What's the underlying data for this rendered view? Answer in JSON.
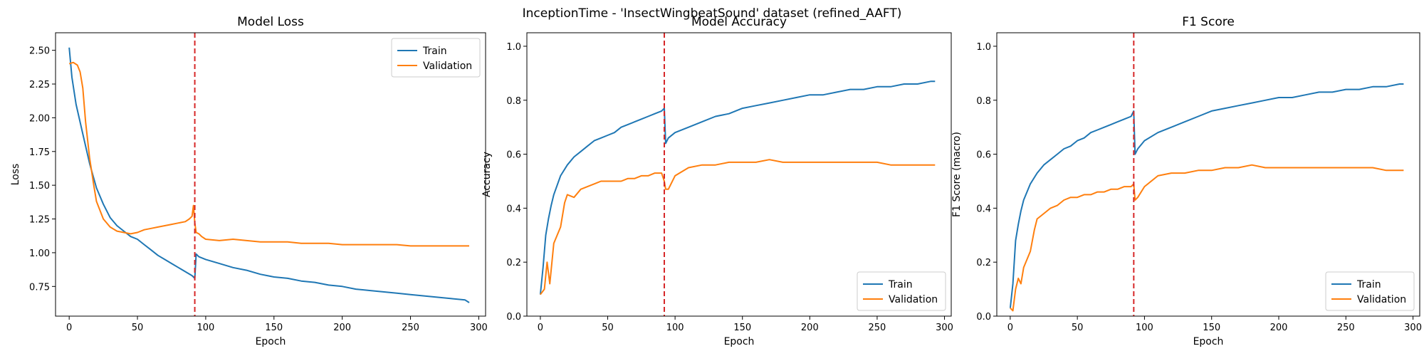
{
  "figure": {
    "suptitle": "InceptionTime - 'InsectWingbeatSound' dataset (refined_AAFT)"
  },
  "colors": {
    "train": "#1f77b4",
    "validation": "#ff7f0e",
    "marker": "#d62728",
    "axis": "#000000"
  },
  "chart_data": [
    {
      "type": "line",
      "title": "Model Loss",
      "xlabel": "Epoch",
      "ylabel": "Loss",
      "xlim": [
        -10,
        305
      ],
      "ylim": [
        0.53,
        2.63
      ],
      "xticks": [
        0,
        50,
        100,
        150,
        200,
        250,
        300
      ],
      "xtick_labels": [
        "0",
        "50",
        "100",
        "150",
        "200",
        "250",
        "300"
      ],
      "yticks": [
        0.75,
        1.0,
        1.25,
        1.5,
        1.75,
        2.0,
        2.25,
        2.5
      ],
      "ytick_labels": [
        "0.75",
        "1.00",
        "1.25",
        "1.50",
        "1.75",
        "2.00",
        "2.25",
        "2.50"
      ],
      "vline_x": 92,
      "legend_loc": "upper right",
      "series": [
        {
          "name": "Train",
          "color": "#1f77b4",
          "x": [
            0,
            2,
            5,
            10,
            15,
            20,
            25,
            30,
            35,
            40,
            45,
            50,
            55,
            60,
            65,
            70,
            75,
            80,
            85,
            90,
            92,
            93,
            95,
            100,
            110,
            120,
            130,
            140,
            150,
            160,
            170,
            180,
            190,
            200,
            210,
            220,
            230,
            240,
            250,
            260,
            270,
            280,
            290,
            293
          ],
          "y": [
            2.52,
            2.3,
            2.1,
            1.88,
            1.66,
            1.48,
            1.36,
            1.26,
            1.2,
            1.16,
            1.12,
            1.1,
            1.06,
            1.02,
            0.98,
            0.95,
            0.92,
            0.89,
            0.86,
            0.83,
            0.81,
            0.99,
            0.97,
            0.95,
            0.92,
            0.89,
            0.87,
            0.84,
            0.82,
            0.81,
            0.79,
            0.78,
            0.76,
            0.75,
            0.73,
            0.72,
            0.71,
            0.7,
            0.69,
            0.68,
            0.67,
            0.66,
            0.65,
            0.63
          ]
        },
        {
          "name": "Validation",
          "color": "#ff7f0e",
          "x": [
            0,
            3,
            6,
            8,
            10,
            12,
            15,
            18,
            20,
            25,
            30,
            35,
            40,
            45,
            50,
            55,
            60,
            65,
            70,
            75,
            80,
            85,
            88,
            90,
            91,
            92,
            93,
            95,
            97,
            100,
            110,
            120,
            130,
            140,
            150,
            160,
            170,
            180,
            190,
            200,
            210,
            220,
            230,
            240,
            250,
            260,
            270,
            280,
            290,
            293
          ],
          "y": [
            2.4,
            2.41,
            2.39,
            2.34,
            2.22,
            1.97,
            1.7,
            1.5,
            1.38,
            1.25,
            1.19,
            1.16,
            1.15,
            1.14,
            1.15,
            1.17,
            1.18,
            1.19,
            1.2,
            1.21,
            1.22,
            1.23,
            1.25,
            1.27,
            1.35,
            1.22,
            1.15,
            1.14,
            1.12,
            1.1,
            1.09,
            1.1,
            1.09,
            1.08,
            1.08,
            1.08,
            1.07,
            1.07,
            1.07,
            1.06,
            1.06,
            1.06,
            1.06,
            1.06,
            1.05,
            1.05,
            1.05,
            1.05,
            1.05,
            1.05
          ]
        }
      ]
    },
    {
      "type": "line",
      "title": "Model Accuracy",
      "xlabel": "Epoch",
      "ylabel": "Accuracy",
      "xlim": [
        -10,
        305
      ],
      "ylim": [
        0.0,
        1.05
      ],
      "xticks": [
        0,
        50,
        100,
        150,
        200,
        250,
        300
      ],
      "xtick_labels": [
        "0",
        "50",
        "100",
        "150",
        "200",
        "250",
        "300"
      ],
      "yticks": [
        0.0,
        0.2,
        0.4,
        0.6,
        0.8,
        1.0
      ],
      "ytick_labels": [
        "0.0",
        "0.2",
        "0.4",
        "0.6",
        "0.8",
        "1.0"
      ],
      "vline_x": 92,
      "legend_loc": "lower right",
      "series": [
        {
          "name": "Train",
          "color": "#1f77b4",
          "x": [
            0,
            2,
            4,
            6,
            8,
            10,
            15,
            20,
            25,
            30,
            35,
            40,
            45,
            50,
            55,
            60,
            65,
            70,
            75,
            80,
            85,
            90,
            92,
            93,
            95,
            100,
            110,
            120,
            130,
            140,
            150,
            160,
            170,
            180,
            190,
            200,
            210,
            220,
            230,
            240,
            250,
            260,
            270,
            280,
            290,
            293
          ],
          "y": [
            0.08,
            0.18,
            0.3,
            0.36,
            0.41,
            0.45,
            0.52,
            0.56,
            0.59,
            0.61,
            0.63,
            0.65,
            0.66,
            0.67,
            0.68,
            0.7,
            0.71,
            0.72,
            0.73,
            0.74,
            0.75,
            0.76,
            0.77,
            0.64,
            0.66,
            0.68,
            0.7,
            0.72,
            0.74,
            0.75,
            0.77,
            0.78,
            0.79,
            0.8,
            0.81,
            0.82,
            0.82,
            0.83,
            0.84,
            0.84,
            0.85,
            0.85,
            0.86,
            0.86,
            0.87,
            0.87
          ]
        },
        {
          "name": "Validation",
          "color": "#ff7f0e",
          "x": [
            0,
            3,
            5,
            7,
            10,
            15,
            18,
            20,
            25,
            30,
            35,
            40,
            45,
            50,
            55,
            60,
            65,
            70,
            75,
            80,
            85,
            90,
            92,
            93,
            95,
            100,
            110,
            120,
            130,
            140,
            150,
            160,
            170,
            180,
            190,
            200,
            210,
            220,
            230,
            240,
            250,
            260,
            270,
            280,
            290,
            293
          ],
          "y": [
            0.08,
            0.1,
            0.2,
            0.12,
            0.27,
            0.33,
            0.42,
            0.45,
            0.44,
            0.47,
            0.48,
            0.49,
            0.5,
            0.5,
            0.5,
            0.5,
            0.51,
            0.51,
            0.52,
            0.52,
            0.53,
            0.53,
            0.5,
            0.47,
            0.47,
            0.52,
            0.55,
            0.56,
            0.56,
            0.57,
            0.57,
            0.57,
            0.58,
            0.57,
            0.57,
            0.57,
            0.57,
            0.57,
            0.57,
            0.57,
            0.57,
            0.56,
            0.56,
            0.56,
            0.56,
            0.56
          ]
        }
      ]
    },
    {
      "type": "line",
      "title": "F1 Score",
      "xlabel": "Epoch",
      "ylabel": "F1 Score (macro)",
      "xlim": [
        -10,
        305
      ],
      "ylim": [
        0.0,
        1.05
      ],
      "xticks": [
        0,
        50,
        100,
        150,
        200,
        250,
        300
      ],
      "xtick_labels": [
        "0",
        "50",
        "100",
        "150",
        "200",
        "250",
        "300"
      ],
      "yticks": [
        0.0,
        0.2,
        0.4,
        0.6,
        0.8,
        1.0
      ],
      "ytick_labels": [
        "0.0",
        "0.2",
        "0.4",
        "0.6",
        "0.8",
        "1.0"
      ],
      "vline_x": 92,
      "legend_loc": "lower right",
      "series": [
        {
          "name": "Train",
          "color": "#1f77b4",
          "x": [
            0,
            2,
            4,
            6,
            8,
            10,
            15,
            20,
            25,
            30,
            35,
            40,
            45,
            50,
            55,
            60,
            65,
            70,
            75,
            80,
            85,
            90,
            92,
            93,
            95,
            100,
            110,
            120,
            130,
            140,
            150,
            160,
            170,
            180,
            190,
            200,
            210,
            220,
            230,
            240,
            250,
            260,
            270,
            280,
            290,
            293
          ],
          "y": [
            0.03,
            0.12,
            0.28,
            0.34,
            0.39,
            0.43,
            0.49,
            0.53,
            0.56,
            0.58,
            0.6,
            0.62,
            0.63,
            0.65,
            0.66,
            0.68,
            0.69,
            0.7,
            0.71,
            0.72,
            0.73,
            0.74,
            0.76,
            0.6,
            0.62,
            0.65,
            0.68,
            0.7,
            0.72,
            0.74,
            0.76,
            0.77,
            0.78,
            0.79,
            0.8,
            0.81,
            0.81,
            0.82,
            0.83,
            0.83,
            0.84,
            0.84,
            0.85,
            0.85,
            0.86,
            0.86
          ]
        },
        {
          "name": "Validation",
          "color": "#ff7f0e",
          "x": [
            0,
            2,
            4,
            6,
            8,
            10,
            15,
            18,
            20,
            25,
            30,
            35,
            40,
            45,
            50,
            55,
            60,
            65,
            70,
            75,
            80,
            85,
            90,
            92,
            93,
            95,
            100,
            110,
            120,
            130,
            140,
            150,
            160,
            170,
            180,
            190,
            200,
            210,
            220,
            230,
            240,
            250,
            260,
            270,
            280,
            290,
            293
          ],
          "y": [
            0.03,
            0.02,
            0.1,
            0.14,
            0.12,
            0.18,
            0.24,
            0.32,
            0.36,
            0.38,
            0.4,
            0.41,
            0.43,
            0.44,
            0.44,
            0.45,
            0.45,
            0.46,
            0.46,
            0.47,
            0.47,
            0.48,
            0.48,
            0.49,
            0.43,
            0.44,
            0.48,
            0.52,
            0.53,
            0.53,
            0.54,
            0.54,
            0.55,
            0.55,
            0.56,
            0.55,
            0.55,
            0.55,
            0.55,
            0.55,
            0.55,
            0.55,
            0.55,
            0.55,
            0.54,
            0.54,
            0.54
          ]
        }
      ]
    }
  ]
}
